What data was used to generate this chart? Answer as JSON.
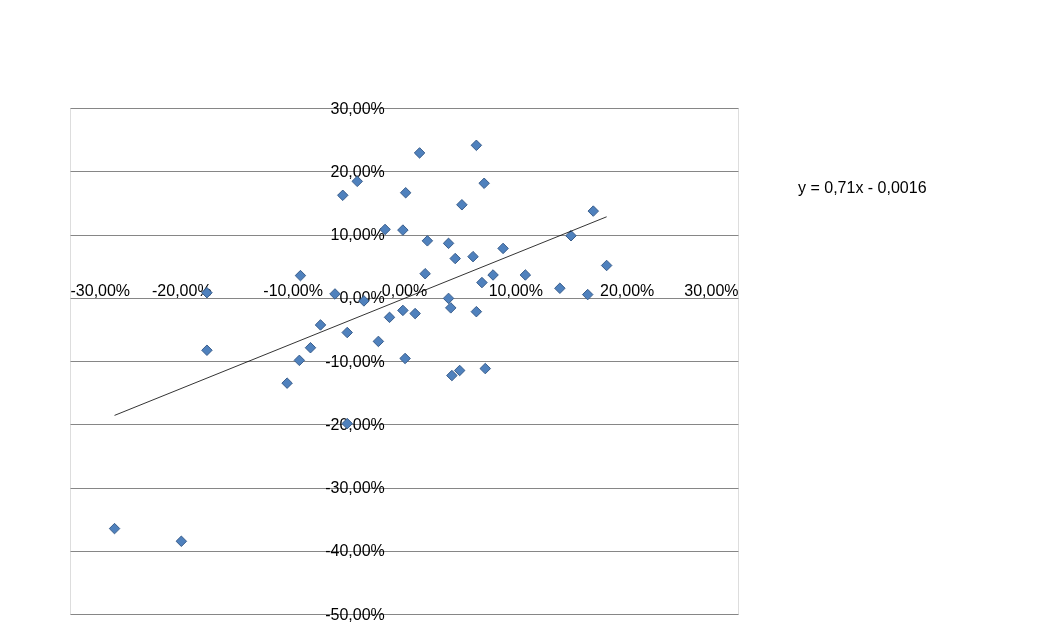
{
  "chart_data": {
    "type": "scatter",
    "series": [
      {
        "color": "#4f81bd",
        "marker": "diamond",
        "x": [
          -17.7,
          -17.7,
          -9.3,
          -6.2,
          -3.6,
          -5.5,
          -4.2,
          -1.7,
          -0.1,
          0.15,
          -7.5,
          -8.4,
          -9.4,
          -10.5,
          -5.1,
          -2.3,
          -1.3,
          -5.1,
          0.1,
          -26.0,
          -20.0,
          1.4,
          6.5,
          7.2,
          5.2,
          2.1,
          4.0,
          4.6,
          6.2,
          8.9,
          15.0,
          17.0,
          18.2,
          10.9,
          8.0,
          7.0,
          14.0,
          16.5,
          1.9,
          4.0,
          4.2,
          6.5,
          1.0,
          -0.1,
          4.3,
          5.0,
          7.3
        ],
        "values": [
          0.8,
          -8.3,
          3.5,
          0.6,
          -0.5,
          16.2,
          18.4,
          10.8,
          10.7,
          16.6,
          -4.3,
          -7.9,
          -9.9,
          -13.5,
          -5.5,
          -6.9,
          -3.1,
          -19.9,
          -9.6,
          -36.5,
          -38.5,
          22.9,
          24.1,
          18.1,
          14.7,
          9.0,
          8.6,
          6.2,
          6.5,
          7.8,
          9.8,
          13.7,
          5.1,
          3.6,
          3.6,
          2.4,
          1.5,
          0.5,
          3.8,
          -0.1,
          -1.6,
          -2.2,
          -2.5,
          -2.0,
          -12.3,
          -11.5,
          -11.2
        ]
      },
      {
        "type": "line",
        "color": "#000000",
        "x": [
          -26.0,
          18.2
        ],
        "values": [
          -18.6,
          12.8
        ]
      }
    ],
    "xlim": [
      -30,
      30
    ],
    "xticks": [
      {
        "value": -30,
        "label": "-30,00%"
      },
      {
        "value": -20,
        "label": "-20,00%"
      },
      {
        "value": -10,
        "label": "-10,00%"
      },
      {
        "value": 0,
        "label": "0,00%"
      },
      {
        "value": 10,
        "label": "10,00%"
      },
      {
        "value": 20,
        "label": "20,00%"
      },
      {
        "value": 30,
        "label": "30,00%"
      }
    ],
    "ylim": [
      -50,
      30
    ],
    "yticks": [
      {
        "value": -50,
        "label": "-50,00%"
      },
      {
        "value": -40,
        "label": "-40,00%"
      },
      {
        "value": -30,
        "label": "-30,00%"
      },
      {
        "value": -20,
        "label": "-20,00%"
      },
      {
        "value": -10,
        "label": "-10,00%"
      },
      {
        "value": 0,
        "label": "0,00%"
      },
      {
        "value": 10,
        "label": "10,00%"
      },
      {
        "value": 20,
        "label": "20,00%"
      },
      {
        "value": 30,
        "label": "30,00%"
      }
    ],
    "grid": "y",
    "annotations": [
      "y = 0,71x - 0,0016"
    ]
  }
}
